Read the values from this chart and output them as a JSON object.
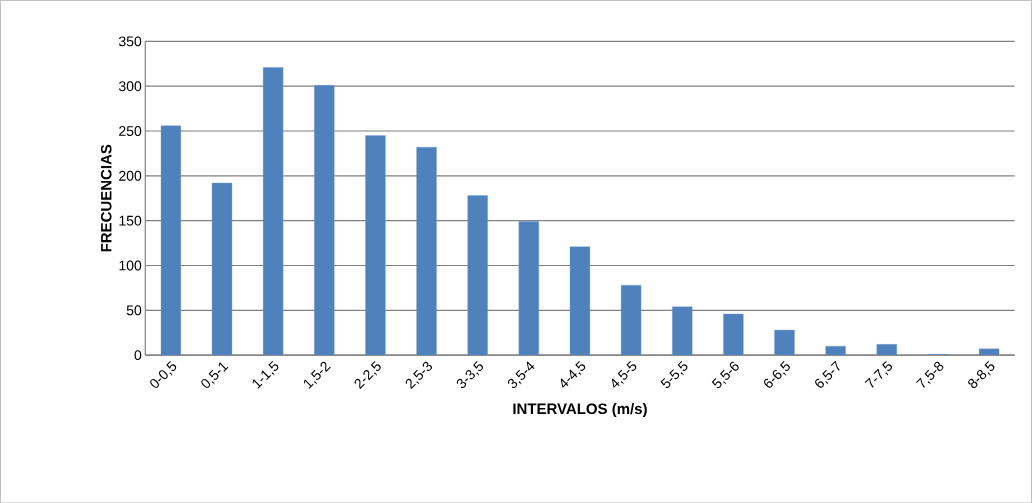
{
  "chart_data": {
    "type": "bar",
    "xlabel": "INTERVALOS (m/s)",
    "ylabel": "FRECUENCIAS",
    "categories": [
      "0-0,5",
      "0,5-1",
      "1-1,5",
      "1,5-2",
      "2-2,5",
      "2,5-3",
      "3-3,5",
      "3,5-4",
      "4-4,5",
      "4,5-5",
      "5-5,5",
      "5,5-6",
      "6-6,5",
      "6,5-7",
      "7-7,5",
      "7,5-8",
      "8-8,5"
    ],
    "values": [
      256,
      192,
      321,
      301,
      245,
      232,
      178,
      149,
      121,
      78,
      54,
      46,
      28,
      10,
      12,
      1,
      7
    ],
    "color": "#4f81bd",
    "ylim": [
      0,
      350
    ],
    "yticks": [
      0,
      50,
      100,
      150,
      200,
      250,
      300,
      350
    ],
    "grid": "y"
  }
}
